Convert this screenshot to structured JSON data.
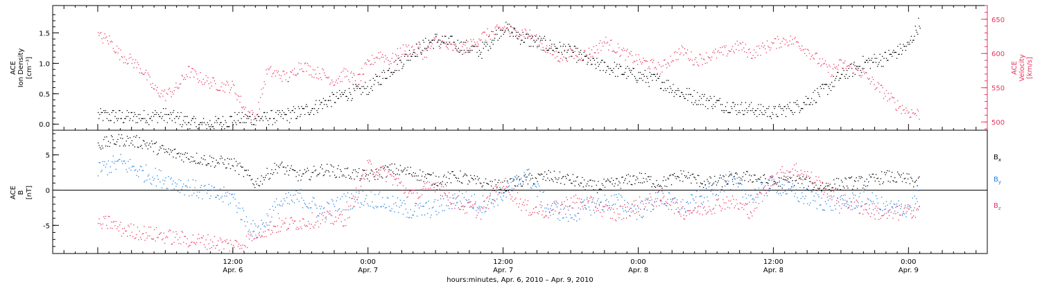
{
  "chart_data": [
    {
      "type": "scatter",
      "panel": "top",
      "left_axis": {
        "label_lines": [
          "ACE",
          "Ion Density",
          "[cm⁻³]"
        ],
        "range": [
          -0.1,
          1.95
        ],
        "ticks": [
          "0.0",
          "0.5",
          "1.0",
          "1.5"
        ],
        "tick_values": [
          0.0,
          0.5,
          1.0,
          1.5
        ]
      },
      "right_axis": {
        "label_lines": [
          "ACE",
          "Velocity",
          "[km/s]"
        ],
        "range": [
          488,
          670
        ],
        "ticks": [
          "500",
          "550",
          "600",
          "650"
        ],
        "tick_values": [
          500,
          550,
          600,
          650
        ],
        "color": "#e8335f"
      },
      "series": [
        {
          "axis": "left",
          "color": "#000000",
          "points_hours": [
            0,
            3,
            6,
            8,
            9,
            12,
            14,
            16,
            18,
            20,
            22,
            24,
            26,
            28,
            30,
            32,
            34,
            36,
            38,
            40,
            42,
            44,
            46,
            48,
            50,
            52,
            54,
            56,
            58,
            60,
            62,
            64,
            66,
            68,
            70,
            72,
            73
          ],
          "values": [
            0.15,
            0.12,
            0.15,
            0.05,
            -0.02,
            0.08,
            0.1,
            0.12,
            0.2,
            0.35,
            0.5,
            0.6,
            0.9,
            1.2,
            1.4,
            1.3,
            1.2,
            1.6,
            1.4,
            1.3,
            1.2,
            1.0,
            0.9,
            0.8,
            0.7,
            0.5,
            0.4,
            0.3,
            0.25,
            0.2,
            0.3,
            0.5,
            0.8,
            1.0,
            1.1,
            1.3,
            1.7
          ]
        },
        {
          "axis": "right",
          "color": "#e8335f",
          "points_hours": [
            0,
            1,
            2,
            3,
            4,
            5,
            6,
            7,
            8,
            9,
            10,
            11,
            12,
            13,
            14,
            15,
            16,
            17,
            18,
            19,
            20,
            21,
            22,
            23,
            24,
            25,
            26,
            27,
            28,
            29,
            30,
            31,
            32,
            33,
            34,
            35,
            36,
            37,
            38,
            39,
            40,
            41,
            42,
            43,
            44,
            45,
            46,
            47,
            48,
            49,
            50,
            51,
            52,
            53,
            54,
            55,
            56,
            57,
            58,
            59,
            60,
            61,
            62,
            63,
            64,
            65,
            66,
            67,
            68,
            69,
            70,
            71,
            72,
            73
          ],
          "values": [
            625,
            620,
            598,
            590,
            575,
            548,
            540,
            550,
            575,
            565,
            558,
            553,
            552,
            520,
            505,
            575,
            570,
            565,
            585,
            575,
            570,
            560,
            572,
            560,
            585,
            600,
            590,
            605,
            608,
            600,
            620,
            610,
            608,
            612,
            625,
            630,
            638,
            630,
            632,
            618,
            605,
            595,
            600,
            598,
            604,
            618,
            608,
            598,
            590,
            585,
            578,
            595,
            605,
            590,
            595,
            600,
            605,
            612,
            600,
            608,
            615,
            620,
            618,
            605,
            590,
            575,
            585,
            580,
            570,
            555,
            540,
            525,
            515,
            512
          ]
        }
      ]
    },
    {
      "type": "scatter",
      "panel": "bottom",
      "left_axis": {
        "label_lines": [
          "ACE",
          "B",
          "[nT]"
        ],
        "range": [
          -9,
          8.5
        ],
        "ticks": [
          "-5",
          "0",
          "5"
        ],
        "tick_values": [
          -5,
          0,
          5
        ]
      },
      "legend": [
        {
          "name": "Bx",
          "base": "B",
          "sub": "x",
          "color": "#000000"
        },
        {
          "name": "By",
          "base": "B",
          "sub": "y",
          "color": "#1f7fe0"
        },
        {
          "name": "Bz",
          "base": "B",
          "sub": "z",
          "color": "#e8335f"
        }
      ],
      "series": [
        {
          "name": "Bx",
          "color": "#000000",
          "points_hours": [
            0,
            2,
            4,
            6,
            8,
            10,
            12,
            13,
            14,
            16,
            18,
            20,
            22,
            24,
            26,
            28,
            30,
            32,
            34,
            36,
            38,
            40,
            42,
            44,
            46,
            48,
            50,
            52,
            54,
            56,
            58,
            60,
            62,
            64,
            66,
            68,
            70,
            72,
            73
          ],
          "values": [
            6.5,
            7.2,
            6.8,
            5.5,
            4.8,
            4.2,
            3.8,
            2.5,
            1.0,
            3.5,
            2.0,
            3.0,
            2.5,
            2.0,
            3.0,
            2.5,
            1.5,
            2.0,
            1.0,
            0.5,
            1.5,
            2.0,
            1.5,
            0.5,
            1.0,
            1.8,
            1.0,
            2.2,
            1.0,
            1.5,
            2.0,
            1.0,
            1.5,
            0.5,
            1.0,
            1.2,
            2.0,
            1.5,
            1.0
          ]
        },
        {
          "name": "By",
          "color": "#1f7fe0",
          "points_hours": [
            0,
            2,
            4,
            6,
            8,
            10,
            12,
            13,
            14,
            16,
            18,
            20,
            22,
            24,
            26,
            28,
            30,
            32,
            34,
            36,
            38,
            40,
            42,
            44,
            46,
            48,
            50,
            52,
            54,
            56,
            58,
            60,
            62,
            64,
            66,
            68,
            70,
            72,
            73
          ],
          "values": [
            3.0,
            4.0,
            2.5,
            1.5,
            0.5,
            -0.5,
            -1.0,
            -4.0,
            -6.0,
            -2.0,
            -1.0,
            -3.0,
            -1.5,
            -1.0,
            -2.0,
            -3.0,
            -2.5,
            -1.0,
            -2.0,
            -0.5,
            2.5,
            -2.5,
            -3.5,
            -2.0,
            -1.5,
            -3.0,
            -1.0,
            -2.5,
            -0.5,
            1.5,
            -1.0,
            1.0,
            -0.5,
            -1.5,
            -2.0,
            -1.0,
            -2.5,
            -2.5,
            -1.0
          ]
        },
        {
          "name": "Bz",
          "color": "#e8335f",
          "points_hours": [
            0,
            1,
            2,
            4,
            6,
            8,
            10,
            12,
            13,
            14,
            16,
            18,
            20,
            22,
            24,
            26,
            28,
            30,
            32,
            34,
            36,
            38,
            40,
            42,
            44,
            46,
            48,
            50,
            52,
            54,
            56,
            58,
            60,
            62,
            64,
            66,
            68,
            70,
            72,
            73
          ],
          "values": [
            -5.0,
            -4.5,
            -5.5,
            -6.0,
            -6.5,
            -7.0,
            -7.3,
            -7.8,
            -7.5,
            -6.0,
            -5.0,
            -4.5,
            -4.0,
            -4.0,
            3.5,
            2.0,
            -1.0,
            1.0,
            -2.0,
            -3.0,
            1.0,
            -2.5,
            -3.0,
            -1.5,
            -2.0,
            -3.5,
            -2.0,
            -1.0,
            -3.0,
            -2.5,
            -1.5,
            -3.0,
            2.0,
            3.0,
            1.0,
            -1.5,
            -2.5,
            -3.5,
            -3.0,
            -2.5
          ]
        }
      ]
    }
  ],
  "x_axis": {
    "range_hours": [
      -4,
      79
    ],
    "major_ticks": [
      {
        "hour": 12,
        "line1": "12:00",
        "line2": "Apr. 6"
      },
      {
        "hour": 24,
        "line1": "0:00",
        "line2": "Apr. 7"
      },
      {
        "hour": 36,
        "line1": "12:00",
        "line2": "Apr. 7"
      },
      {
        "hour": 48,
        "line1": "0:00",
        "line2": "Apr. 8"
      },
      {
        "hour": 60,
        "line1": "12:00",
        "line2": "Apr. 8"
      },
      {
        "hour": 72,
        "line1": "0:00",
        "line2": "Apr. 9"
      }
    ],
    "label": "hours:minutes, Apr.  6, 2010 – Apr.  9, 2010"
  }
}
